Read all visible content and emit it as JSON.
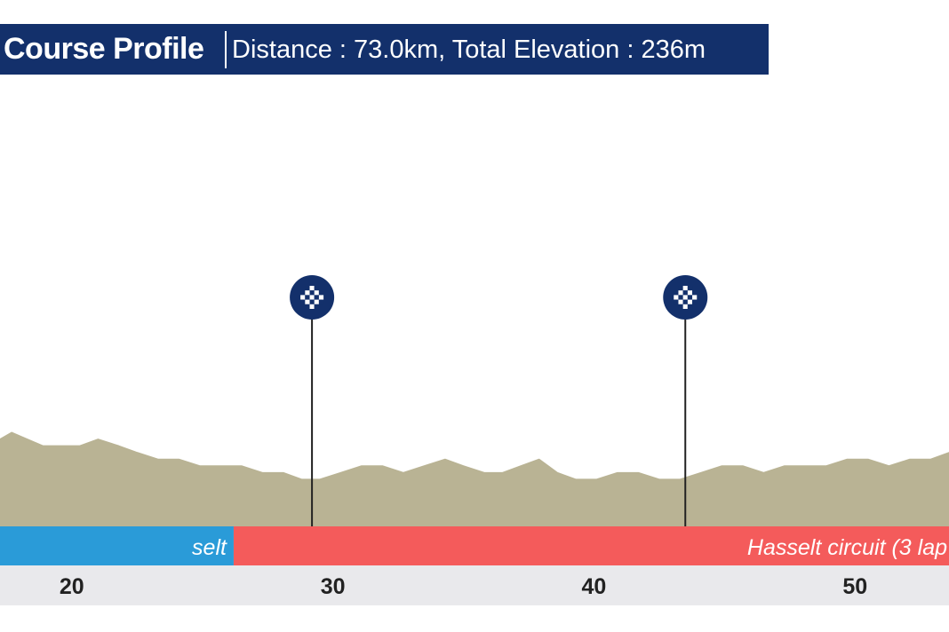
{
  "header": {
    "title": "Course Profile",
    "subtitle": "Distance : 73.0km, Total Elevation : 236m"
  },
  "colors": {
    "header_bg": "#13306b",
    "terrain": "#b9b394",
    "segment_blue": "#2a9bd8",
    "segment_red": "#f45b5b",
    "axis_band": "#e9e9ec",
    "marker": "#13306b"
  },
  "chart_data": {
    "type": "area",
    "title": "Course Profile",
    "xlabel": "",
    "ylabel": "",
    "xlim": [
      17.25,
      53.6
    ],
    "ylim": [
      0,
      60
    ],
    "x_ticks": [
      20,
      30,
      40,
      50
    ],
    "series": [
      {
        "x": [
          17.25,
          17.7,
          18.3,
          18.9,
          19.6,
          20.3,
          21.0,
          21.8,
          22.5,
          23.3,
          24.1,
          24.9,
          25.7,
          26.5,
          27.3,
          28.1,
          28.8,
          29.5,
          30.3,
          31.1,
          31.9,
          32.7,
          33.5,
          34.3,
          35.0,
          35.8,
          36.5,
          37.2,
          37.9,
          38.6,
          39.3,
          40.1,
          40.9,
          41.7,
          42.5,
          43.3,
          44.1,
          44.9,
          45.7,
          46.5,
          47.3,
          48.1,
          48.9,
          49.7,
          50.5,
          51.3,
          52.1,
          52.9,
          53.6
        ],
        "y": [
          13,
          14,
          13,
          12,
          12,
          12,
          13,
          12,
          11,
          10,
          10,
          9,
          9,
          9,
          8,
          8,
          7,
          7,
          8,
          9,
          9,
          8,
          9,
          10,
          9,
          8,
          8,
          9,
          10,
          8,
          7,
          7,
          8,
          8,
          7,
          7,
          8,
          9,
          9,
          8,
          9,
          9,
          9,
          10,
          10,
          9,
          10,
          10,
          11
        ]
      }
    ],
    "segments": [
      {
        "label": "selt",
        "from": 17.25,
        "to": 26.2,
        "color": "#2a9bd8"
      },
      {
        "label": "Hasselt circuit (3 lap",
        "from": 26.2,
        "to": 53.6,
        "color": "#f45b5b"
      }
    ],
    "markers": [
      {
        "x": 29.2,
        "icon": "checkered-flag-icon"
      },
      {
        "x": 43.5,
        "icon": "checkered-flag-icon"
      }
    ]
  }
}
